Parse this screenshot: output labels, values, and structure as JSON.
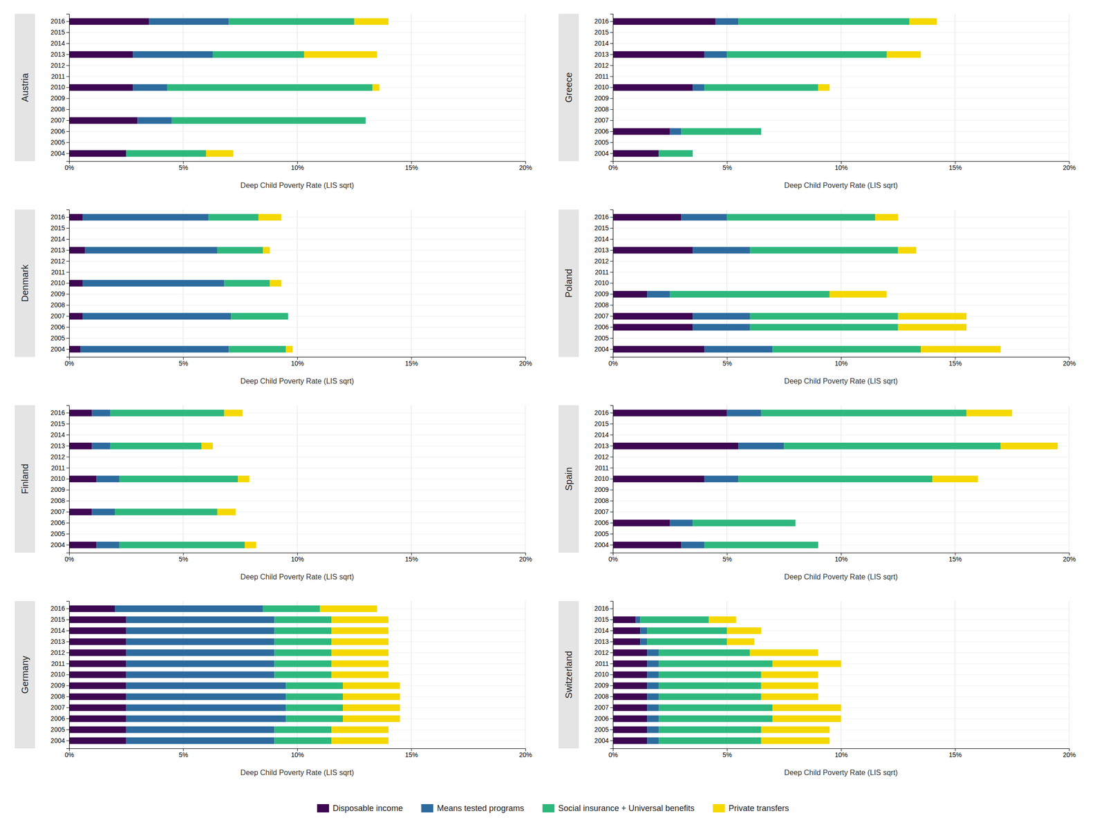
{
  "chart_data": [
    {
      "type": "bar",
      "orientation": "horizontal",
      "stacked": true,
      "grid": true,
      "legend": "bottom",
      "title": "Austria",
      "xlabel": "Deep Child Poverty Rate (LIS sqrt)",
      "categories": [
        "2004",
        "2005",
        "2006",
        "2007",
        "2008",
        "2009",
        "2010",
        "2011",
        "2012",
        "2013",
        "2014",
        "2015",
        "2016"
      ],
      "xlim": [
        0,
        20
      ],
      "xticks": [
        {
          "value": 0,
          "label": "0%"
        },
        {
          "value": 5,
          "label": "5%"
        },
        {
          "value": 10,
          "label": "10%"
        },
        {
          "value": 15,
          "label": "15%"
        },
        {
          "value": 20,
          "label": "20%"
        }
      ],
      "series": [
        {
          "name": "Disposable income",
          "color": "#3d0752",
          "values": [
            2.5,
            0,
            0,
            3.0,
            0,
            0,
            2.8,
            0,
            0,
            2.8,
            0,
            0,
            3.5
          ]
        },
        {
          "name": "Means tested programs",
          "color": "#2d6b9e",
          "values": [
            0,
            0,
            0,
            1.5,
            0,
            0,
            1.5,
            0,
            0,
            3.5,
            0,
            0,
            3.5
          ]
        },
        {
          "name": "Social insurance + Universal benefits",
          "color": "#2eb87e",
          "values": [
            3.5,
            0,
            0,
            8.5,
            0,
            0,
            9.0,
            0,
            0,
            4.0,
            0,
            0,
            5.5
          ]
        },
        {
          "name": "Private transfers",
          "color": "#f5d800",
          "values": [
            1.2,
            0,
            0,
            0,
            0,
            0,
            0.3,
            0,
            0,
            3.2,
            0,
            0,
            1.5
          ]
        }
      ]
    },
    {
      "type": "bar",
      "orientation": "horizontal",
      "stacked": true,
      "grid": true,
      "title": "Denmark",
      "xlabel": "Deep Child Poverty Rate (LIS sqrt)",
      "categories": [
        "2004",
        "2005",
        "2006",
        "2007",
        "2008",
        "2009",
        "2010",
        "2011",
        "2012",
        "2013",
        "2014",
        "2015",
        "2016"
      ],
      "xlim": [
        0,
        20
      ],
      "xticks": [
        {
          "value": 0,
          "label": "0%"
        },
        {
          "value": 5,
          "label": "5%"
        },
        {
          "value": 10,
          "label": "10%"
        },
        {
          "value": 15,
          "label": "15%"
        },
        {
          "value": 20,
          "label": "20%"
        }
      ],
      "series": [
        {
          "color": "#3d0752",
          "values": [
            0.5,
            0,
            0,
            0.6,
            0,
            0,
            0.6,
            0,
            0,
            0.7,
            0,
            0,
            0.6
          ]
        },
        {
          "color": "#2d6b9e",
          "values": [
            6.5,
            0,
            0,
            6.5,
            0,
            0,
            6.2,
            0,
            0,
            5.8,
            0,
            0,
            5.5
          ]
        },
        {
          "color": "#2eb87e",
          "values": [
            2.5,
            0,
            0,
            2.5,
            0,
            0,
            2.0,
            0,
            0,
            2.0,
            0,
            0,
            2.2
          ]
        },
        {
          "color": "#f5d800",
          "values": [
            0.3,
            0,
            0,
            0,
            0,
            0,
            0.5,
            0,
            0,
            0.3,
            0,
            0,
            1.0
          ]
        }
      ]
    },
    {
      "type": "bar",
      "orientation": "horizontal",
      "stacked": true,
      "grid": true,
      "title": "Finland",
      "xlabel": "Deep Child Poverty Rate (LIS sqrt)",
      "categories": [
        "2004",
        "2005",
        "2006",
        "2007",
        "2008",
        "2009",
        "2010",
        "2011",
        "2012",
        "2013",
        "2014",
        "2015",
        "2016"
      ],
      "xlim": [
        0,
        20
      ],
      "xticks": [
        {
          "value": 0,
          "label": "0%"
        },
        {
          "value": 5,
          "label": "5%"
        },
        {
          "value": 10,
          "label": "10%"
        },
        {
          "value": 15,
          "label": "15%"
        },
        {
          "value": 20,
          "label": "20%"
        }
      ],
      "series": [
        {
          "color": "#3d0752",
          "values": [
            1.2,
            0,
            0,
            1.0,
            0,
            0,
            1.2,
            0,
            0,
            1.0,
            0,
            0,
            1.0
          ]
        },
        {
          "color": "#2d6b9e",
          "values": [
            1.0,
            0,
            0,
            1.0,
            0,
            0,
            1.0,
            0,
            0,
            0.8,
            0,
            0,
            0.8
          ]
        },
        {
          "color": "#2eb87e",
          "values": [
            5.5,
            0,
            0,
            4.5,
            0,
            0,
            5.2,
            0,
            0,
            4.0,
            0,
            0,
            5.0
          ]
        },
        {
          "color": "#f5d800",
          "values": [
            0.5,
            0,
            0,
            0.8,
            0,
            0,
            0.5,
            0,
            0,
            0.5,
            0,
            0,
            0.8
          ]
        }
      ]
    },
    {
      "type": "bar",
      "orientation": "horizontal",
      "stacked": true,
      "grid": true,
      "title": "Germany",
      "xlabel": "Deep Child Poverty Rate (LIS sqrt)",
      "categories": [
        "2004",
        "2005",
        "2006",
        "2007",
        "2008",
        "2009",
        "2010",
        "2011",
        "2012",
        "2013",
        "2014",
        "2015",
        "2016"
      ],
      "xlim": [
        0,
        20
      ],
      "xticks": [
        {
          "value": 0,
          "label": "0%"
        },
        {
          "value": 5,
          "label": "5%"
        },
        {
          "value": 10,
          "label": "10%"
        },
        {
          "value": 15,
          "label": "15%"
        },
        {
          "value": 20,
          "label": "20%"
        }
      ],
      "series": [
        {
          "color": "#3d0752",
          "values": [
            2.5,
            2.5,
            2.5,
            2.5,
            2.5,
            2.5,
            2.5,
            2.5,
            2.5,
            2.5,
            2.5,
            2.5,
            2.0
          ]
        },
        {
          "color": "#2d6b9e",
          "values": [
            6.5,
            6.5,
            7.0,
            7.0,
            7.0,
            7.0,
            6.5,
            6.5,
            6.5,
            6.5,
            6.5,
            6.5,
            6.5
          ]
        },
        {
          "color": "#2eb87e",
          "values": [
            2.5,
            2.5,
            2.5,
            2.5,
            2.5,
            2.5,
            2.5,
            2.5,
            2.5,
            2.5,
            2.5,
            2.5,
            2.5
          ]
        },
        {
          "color": "#f5d800",
          "values": [
            2.5,
            2.5,
            2.5,
            2.5,
            2.5,
            2.5,
            2.5,
            2.5,
            2.5,
            2.5,
            2.5,
            2.5,
            2.5
          ]
        }
      ]
    },
    {
      "type": "bar",
      "orientation": "horizontal",
      "stacked": true,
      "grid": true,
      "title": "Greece",
      "xlabel": "Deep Child Poverty Rate (LIS sqrt)",
      "categories": [
        "2004",
        "2005",
        "2006",
        "2007",
        "2008",
        "2009",
        "2010",
        "2011",
        "2012",
        "2013",
        "2014",
        "2015",
        "2016"
      ],
      "xlim": [
        0,
        20
      ],
      "xticks": [
        {
          "value": 0,
          "label": "0%"
        },
        {
          "value": 5,
          "label": "5%"
        },
        {
          "value": 10,
          "label": "10%"
        },
        {
          "value": 15,
          "label": "15%"
        },
        {
          "value": 20,
          "label": "20%"
        }
      ],
      "series": [
        {
          "color": "#3d0752",
          "values": [
            2.0,
            0,
            2.5,
            0,
            0,
            0,
            3.5,
            0,
            0,
            4.0,
            0,
            0,
            4.5
          ]
        },
        {
          "color": "#2d6b9e",
          "values": [
            0,
            0,
            0.5,
            0,
            0,
            0,
            0.5,
            0,
            0,
            1.0,
            0,
            0,
            1.0
          ]
        },
        {
          "color": "#2eb87e",
          "values": [
            1.5,
            0,
            3.5,
            0,
            0,
            0,
            5.0,
            0,
            0,
            7.0,
            0,
            0,
            7.5
          ]
        },
        {
          "color": "#f5d800",
          "values": [
            0,
            0,
            0,
            0,
            0,
            0,
            0.5,
            0,
            0,
            1.5,
            0,
            0,
            1.2
          ]
        }
      ]
    },
    {
      "type": "bar",
      "orientation": "horizontal",
      "stacked": true,
      "grid": true,
      "title": "Poland",
      "xlabel": "Deep Child Poverty Rate (LIS sqrt)",
      "categories": [
        "2004",
        "2005",
        "2006",
        "2007",
        "2008",
        "2009",
        "2010",
        "2011",
        "2012",
        "2013",
        "2014",
        "2015",
        "2016"
      ],
      "xlim": [
        0,
        20
      ],
      "xticks": [
        {
          "value": 0,
          "label": "0%"
        },
        {
          "value": 5,
          "label": "5%"
        },
        {
          "value": 10,
          "label": "10%"
        },
        {
          "value": 15,
          "label": "15%"
        },
        {
          "value": 20,
          "label": "20%"
        }
      ],
      "series": [
        {
          "color": "#3d0752",
          "values": [
            4.0,
            0,
            3.5,
            3.5,
            0,
            1.5,
            0,
            0,
            0,
            3.5,
            0,
            0,
            3.0
          ]
        },
        {
          "color": "#2d6b9e",
          "values": [
            3.0,
            0,
            2.5,
            2.5,
            0,
            1.0,
            0,
            0,
            0,
            2.5,
            0,
            0,
            2.0
          ]
        },
        {
          "color": "#2eb87e",
          "values": [
            6.5,
            0,
            6.5,
            6.5,
            0,
            7.0,
            0,
            0,
            0,
            6.5,
            0,
            0,
            6.5
          ]
        },
        {
          "color": "#f5d800",
          "values": [
            3.5,
            0,
            3.0,
            3.0,
            0,
            2.5,
            0,
            0,
            0,
            0.8,
            0,
            0,
            1.0
          ]
        }
      ]
    },
    {
      "type": "bar",
      "orientation": "horizontal",
      "stacked": true,
      "grid": true,
      "title": "Spain",
      "xlabel": "Deep Child Poverty Rate (LIS sqrt)",
      "categories": [
        "2004",
        "2005",
        "2006",
        "2007",
        "2008",
        "2009",
        "2010",
        "2011",
        "2012",
        "2013",
        "2014",
        "2015",
        "2016"
      ],
      "xlim": [
        0,
        20
      ],
      "xticks": [
        {
          "value": 0,
          "label": "0%"
        },
        {
          "value": 5,
          "label": "5%"
        },
        {
          "value": 10,
          "label": "10%"
        },
        {
          "value": 15,
          "label": "15%"
        },
        {
          "value": 20,
          "label": "20%"
        }
      ],
      "series": [
        {
          "color": "#3d0752",
          "values": [
            3.0,
            0,
            2.5,
            0,
            0,
            0,
            4.0,
            0,
            0,
            5.5,
            0,
            0,
            5.0
          ]
        },
        {
          "color": "#2d6b9e",
          "values": [
            1.0,
            0,
            1.0,
            0,
            0,
            0,
            1.5,
            0,
            0,
            2.0,
            0,
            0,
            1.5
          ]
        },
        {
          "color": "#2eb87e",
          "values": [
            5.0,
            0,
            4.5,
            0,
            0,
            0,
            8.5,
            0,
            0,
            9.5,
            0,
            0,
            9.0
          ]
        },
        {
          "color": "#f5d800",
          "values": [
            0,
            0,
            0,
            0,
            0,
            0,
            2.0,
            0,
            0,
            2.5,
            0,
            0,
            2.0
          ]
        }
      ]
    },
    {
      "type": "bar",
      "orientation": "horizontal",
      "stacked": true,
      "grid": true,
      "title": "Switzerland",
      "xlabel": "Deep Child Poverty Rate (LIS sqrt)",
      "categories": [
        "2004",
        "2005",
        "2006",
        "2007",
        "2008",
        "2009",
        "2010",
        "2011",
        "2012",
        "2013",
        "2014",
        "2015",
        "2016"
      ],
      "xlim": [
        0,
        20
      ],
      "xticks": [
        {
          "value": 0,
          "label": "0%"
        },
        {
          "value": 5,
          "label": "5%"
        },
        {
          "value": 10,
          "label": "10%"
        },
        {
          "value": 15,
          "label": "15%"
        },
        {
          "value": 20,
          "label": "20%"
        }
      ],
      "series": [
        {
          "color": "#3d0752",
          "values": [
            1.5,
            1.5,
            1.5,
            1.5,
            1.5,
            1.5,
            1.5,
            1.5,
            1.5,
            1.2,
            1.2,
            1.0,
            0
          ]
        },
        {
          "color": "#2d6b9e",
          "values": [
            0.5,
            0.5,
            0.5,
            0.5,
            0.5,
            0.5,
            0.5,
            0.5,
            0.5,
            0.3,
            0.3,
            0.2,
            0
          ]
        },
        {
          "color": "#2eb87e",
          "values": [
            4.5,
            4.5,
            5.0,
            5.0,
            4.5,
            4.5,
            4.5,
            5.0,
            4.0,
            3.5,
            3.5,
            3.0,
            0
          ]
        },
        {
          "color": "#f5d800",
          "values": [
            3.0,
            3.0,
            3.0,
            3.0,
            2.5,
            2.5,
            2.5,
            3.0,
            3.0,
            1.2,
            1.5,
            1.2,
            0
          ]
        }
      ]
    }
  ]
}
